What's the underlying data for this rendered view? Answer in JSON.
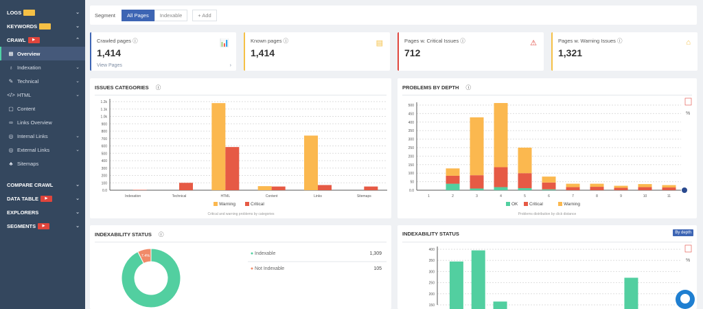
{
  "sidebar": {
    "sections": [
      {
        "label": "LOGS",
        "badge": "beta",
        "type": "beta"
      },
      {
        "label": "KEYWORDS",
        "badge": "beta",
        "type": "beta"
      },
      {
        "label": "CRAWL",
        "badge": "▶",
        "type": "yt",
        "open": true
      }
    ],
    "crawl_items": [
      {
        "label": "Overview",
        "icon": "⊞",
        "active": true
      },
      {
        "label": "Indexation",
        "icon": "♁",
        "chev": true
      },
      {
        "label": "Technical",
        "icon": "✎",
        "chev": true
      },
      {
        "label": "HTML",
        "icon": "</>",
        "chev": true
      },
      {
        "label": "Content",
        "icon": "▢"
      },
      {
        "label": "Links Overview",
        "icon": "∞"
      },
      {
        "label": "Internal Links",
        "icon": "◎",
        "chev": true
      },
      {
        "label": "External Links",
        "icon": "◎",
        "chev": true
      },
      {
        "label": "Sitemaps",
        "icon": "♣"
      }
    ],
    "bottom_sections": [
      {
        "label": "COMPARE CRAWL"
      },
      {
        "label": "DATA TABLE",
        "badge": "▶"
      },
      {
        "label": "EXPLORERS"
      },
      {
        "label": "SEGMENTS",
        "badge": "▶"
      }
    ]
  },
  "segment": {
    "label": "Segment",
    "options": [
      "All Pages",
      "Indexable"
    ],
    "selected": "All Pages",
    "add": "+ Add"
  },
  "kpis": [
    {
      "label": "Crawled pages ⓘ",
      "value": "1,414",
      "link": "View Pages",
      "icon": "bar-chart-icon",
      "color": "#3d65b4"
    },
    {
      "label": "Known pages ⓘ",
      "value": "1,414",
      "icon": "file-icon",
      "color": "#f5c045"
    },
    {
      "label": "Pages w. Critical Issues ⓘ",
      "value": "712",
      "icon": "warning-icon",
      "color": "#e0453c"
    },
    {
      "label": "Pages w. Warning Issues ⓘ",
      "value": "1,321",
      "icon": "bell-icon",
      "color": "#f5c045"
    }
  ],
  "colors": {
    "warning": "#fbb84f",
    "critical": "#e65a45",
    "ok": "#52cfa0",
    "accent": "#3d65b4"
  },
  "chart_data": [
    {
      "type": "bar",
      "title": "ISSUES CATEGORIES",
      "categories": [
        "Indexation",
        "Technical",
        "HTML",
        "Content",
        "Links",
        "Sitemaps"
      ],
      "series": [
        {
          "name": "Warning",
          "values": [
            0,
            0,
            1180,
            55,
            740,
            0
          ]
        },
        {
          "name": "Critical",
          "values": [
            5,
            100,
            585,
            50,
            70,
            50
          ]
        }
      ],
      "yticks": [
        "0.0",
        "100",
        "200",
        "300",
        "400",
        "500",
        "600",
        "700",
        "800",
        "900",
        "1.0k",
        "1.1k",
        "1.2k"
      ],
      "ylim": [
        0,
        1200
      ],
      "caption": "Critical and warning problems by categories",
      "legend": "bottom",
      "grid": true
    },
    {
      "type": "bar",
      "stacked": true,
      "title": "PROBLEMS BY DEPTH",
      "categories": [
        "1",
        "2",
        "3",
        "4",
        "5",
        "6",
        "7",
        "8",
        "9",
        "10",
        "11"
      ],
      "series": [
        {
          "name": "OK",
          "values": [
            0,
            38,
            10,
            18,
            12,
            5,
            0,
            0,
            0,
            0,
            0
          ]
        },
        {
          "name": "Critical",
          "values": [
            0,
            47,
            78,
            117,
            88,
            40,
            18,
            20,
            14,
            18,
            16
          ]
        },
        {
          "name": "Warning",
          "values": [
            0,
            43,
            340,
            377,
            150,
            35,
            20,
            18,
            12,
            18,
            14
          ]
        }
      ],
      "yticks": [
        "0.0",
        "50",
        "100",
        "150",
        "200",
        "250",
        "300",
        "350",
        "400",
        "450",
        "500"
      ],
      "ylim": [
        0,
        500
      ],
      "caption": "Problems distribution by click distance",
      "legend": "bottom",
      "grid": true,
      "pct_label": "%"
    },
    {
      "type": "pie",
      "title": "INDEXABILITY STATUS",
      "slices": [
        {
          "name": "Indexable",
          "value": 1309,
          "display": "1,309"
        },
        {
          "name": "Not Indexable",
          "value": 105,
          "display": "105"
        }
      ],
      "slice_label": "7.4%"
    },
    {
      "type": "bar",
      "title": "INDEXABILITY STATUS",
      "button": "By depth",
      "categories": [
        "1",
        "2",
        "3",
        "4",
        "5",
        "6",
        "7",
        "8",
        "9",
        "10",
        "11"
      ],
      "values": [
        null,
        345,
        395,
        165,
        null,
        null,
        null,
        null,
        null,
        272,
        null
      ],
      "yticks": [
        "150",
        "200",
        "250",
        "300",
        "350",
        "400"
      ],
      "ylim": [
        150,
        400
      ],
      "pct_label": "%",
      "grid": true
    }
  ]
}
